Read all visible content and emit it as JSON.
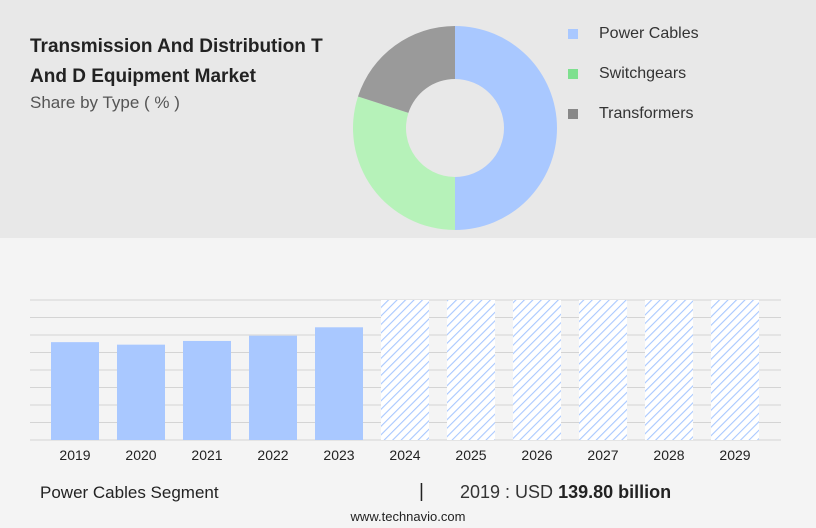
{
  "header": {
    "title": "Transmission And Distribution T And D Equipment Market",
    "subtitle": "Share by Type ( % )"
  },
  "legend": [
    {
      "label": "Power Cables",
      "color": "#a9c8ff"
    },
    {
      "label": "Switchgears",
      "color": "#7ee08f"
    },
    {
      "label": "Transformers",
      "color": "#888888"
    }
  ],
  "footer": {
    "segment": "Power Cables Segment",
    "divider": "|",
    "value_prefix": "2019 : USD ",
    "value_amount": "139.80 billion",
    "url": "www.technavio.com"
  },
  "chart_data": [
    {
      "type": "pie",
      "donut": true,
      "categories": [
        "Power Cables",
        "Switchgears",
        "Transformers"
      ],
      "values": [
        50,
        30,
        20
      ],
      "colors": [
        "#a9c8ff",
        "#b6f2b9",
        "#9a9a9a"
      ]
    },
    {
      "type": "bar",
      "categories": [
        "2019",
        "2020",
        "2021",
        "2022",
        "2023",
        "2024",
        "2025",
        "2026",
        "2027",
        "2028",
        "2029"
      ],
      "values": [
        139.8,
        136.2,
        141.5,
        149.0,
        161.0,
        null,
        null,
        null,
        null,
        null,
        null
      ],
      "forecast_categories": [
        "2024",
        "2025",
        "2026",
        "2027",
        "2028",
        "2029"
      ],
      "ylim": [
        0,
        200
      ],
      "grid": true,
      "bar_color": "#a9c8ff",
      "forecast_color": "#a9c8ff"
    }
  ]
}
